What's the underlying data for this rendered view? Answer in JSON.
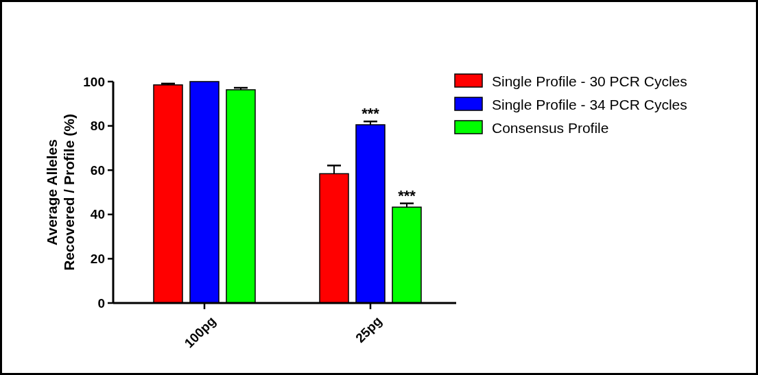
{
  "chart_data": {
    "type": "bar",
    "ylabel": "Average Alleles\nRecovered / Profile (%)",
    "categories": [
      "100pg",
      "25pg"
    ],
    "series": [
      {
        "name": "Single Profile - 30 PCR Cycles",
        "color": "#ff0000",
        "values": [
          98.5,
          58.4
        ],
        "errors": [
          [
            98.5,
            99.1
          ],
          [
            58.4,
            62.1
          ]
        ]
      },
      {
        "name": "Single Profile - 34 PCR Cycles",
        "color": "#0000ff",
        "values": [
          100,
          80.5
        ],
        "errors": [
          null,
          [
            80.5,
            82
          ]
        ]
      },
      {
        "name": "Consensus Profile",
        "color": "#00ff00",
        "values": [
          96.3,
          43.3
        ],
        "errors": [
          [
            96.3,
            97.2
          ],
          [
            43.3,
            45
          ]
        ]
      }
    ],
    "ylim": [
      0,
      100
    ],
    "yticks": [
      0,
      20,
      40,
      60,
      80,
      100
    ],
    "grid": false,
    "legend": "right",
    "annotations": [
      "***",
      "***"
    ]
  }
}
